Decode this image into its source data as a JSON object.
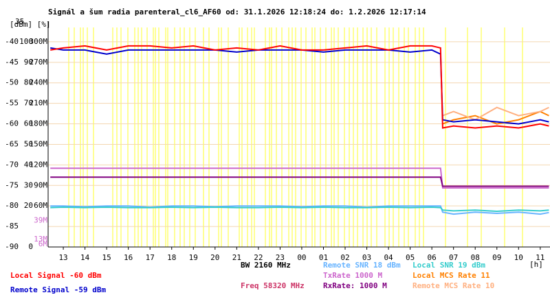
{
  "chart_data": {
    "type": "line",
    "title": "Signál a šum radia parenteral_cl6_AF60 od: 31.1.2026 12:18:24 do: 1.2.2026 12:17:14",
    "y_units_label": "[dBm] [%]",
    "top_label": "35",
    "x_unit_label": "[h]",
    "xlim": [
      -0.7,
      22.45
    ],
    "xticks": [
      {
        "value": 0,
        "label": "13"
      },
      {
        "value": 1,
        "label": "14"
      },
      {
        "value": 2,
        "label": "15"
      },
      {
        "value": 3,
        "label": "16"
      },
      {
        "value": 4,
        "label": "17"
      },
      {
        "value": 5,
        "label": "18"
      },
      {
        "value": 6,
        "label": "19"
      },
      {
        "value": 7,
        "label": "20"
      },
      {
        "value": 8,
        "label": "21"
      },
      {
        "value": 9,
        "label": "22"
      },
      {
        "value": 10,
        "label": "23"
      },
      {
        "value": 11,
        "label": "00"
      },
      {
        "value": 12,
        "label": "01"
      },
      {
        "value": 13,
        "label": "02"
      },
      {
        "value": 14,
        "label": "03"
      },
      {
        "value": 15,
        "label": "04"
      },
      {
        "value": 16,
        "label": "05"
      },
      {
        "value": 17,
        "label": "06"
      },
      {
        "value": 18,
        "label": "07"
      },
      {
        "value": 19,
        "label": "08"
      },
      {
        "value": 20,
        "label": "09"
      },
      {
        "value": 21,
        "label": "10"
      },
      {
        "value": 22,
        "label": "11"
      }
    ],
    "ylim": [
      -90,
      -36.5
    ],
    "yticks": [
      -40,
      -45,
      -50,
      -55,
      -60,
      -65,
      -70,
      -75,
      -80,
      -85,
      -90
    ],
    "percent_labels": [
      "100",
      "90",
      "80",
      "70",
      "60",
      "50",
      "40",
      "30",
      "20",
      null,
      "0"
    ],
    "rate_labels": [
      "300M",
      "270M",
      "240M",
      "210M",
      "180M",
      "150M",
      "120M",
      "90M",
      "60M",
      null,
      null
    ],
    "extra_rate_labels": [
      {
        "value": -83.6,
        "label": "39M"
      },
      {
        "value": -88.2,
        "label": "13M"
      },
      {
        "value": -89.3,
        "label": "6M"
      }
    ],
    "grid": true,
    "x": [
      -0.6,
      0,
      1,
      2,
      3,
      4,
      5,
      6,
      7,
      8,
      9,
      10,
      11,
      12,
      13,
      14,
      15,
      16,
      17,
      17.4,
      17.5,
      18,
      19,
      20,
      21,
      22,
      22.4
    ],
    "series": [
      {
        "name": "Remote SNR 18 dBm",
        "color": "#66b3ff",
        "values": [
          -80,
          -80,
          -80.2,
          -80,
          -80,
          -80.3,
          -80,
          -80,
          -80.2,
          -80,
          -80,
          -80,
          -80.2,
          -80,
          -80,
          -80.3,
          -80,
          -80,
          -80,
          -80,
          -81.5,
          -82,
          -81.5,
          -81.8,
          -81.5,
          -82,
          -81.6
        ]
      },
      {
        "name": "Local SNR 19 dBm",
        "color": "#33cccc",
        "values": [
          -80.4,
          -80.3,
          -80.4,
          -80.3,
          -80.4,
          -80.4,
          -80.3,
          -80.4,
          -80.3,
          -80.4,
          -80.4,
          -80.3,
          -80.4,
          -80.3,
          -80.4,
          -80.4,
          -80.3,
          -80.4,
          -80.3,
          -80.4,
          -81,
          -81.2,
          -81,
          -81.3,
          -81,
          -81.2,
          -81
        ]
      },
      {
        "name": "TxRate 1000 M",
        "color": "#cc66cc",
        "values": [
          -70.8,
          -70.8,
          -70.8,
          -70.8,
          -70.8,
          -70.8,
          -70.8,
          -70.8,
          -70.8,
          -70.8,
          -70.8,
          -70.8,
          -70.8,
          -70.8,
          -70.8,
          -70.8,
          -70.8,
          -70.8,
          -70.8,
          -70.8,
          -75.6,
          -75.6,
          -75.6,
          -75.6,
          -75.6,
          -75.6,
          -75.6
        ]
      },
      {
        "name": "RxRate: 1000 M",
        "color": "#800080",
        "values": [
          -73,
          -73,
          -73,
          -73,
          -73,
          -73,
          -73,
          -73,
          -73,
          -73,
          -73,
          -73,
          -73,
          -73,
          -73,
          -73,
          -73,
          -73,
          -73,
          -73,
          -75.2,
          -75.2,
          -75.2,
          -75.2,
          -75.2,
          -75.2,
          -75.2
        ]
      },
      {
        "name": "Local MCS Rate 11",
        "color": "#ff8000",
        "values": [
          null,
          null,
          null,
          null,
          null,
          null,
          null,
          null,
          null,
          null,
          null,
          null,
          null,
          null,
          null,
          null,
          null,
          null,
          null,
          null,
          -60,
          -59,
          -58,
          -60,
          -59,
          -57,
          -58
        ]
      },
      {
        "name": "Remote MCS Rate 10",
        "color": "#ffb080",
        "values": [
          null,
          null,
          null,
          null,
          null,
          null,
          null,
          null,
          null,
          null,
          null,
          null,
          null,
          null,
          null,
          null,
          null,
          null,
          null,
          null,
          -58,
          -57,
          -59,
          -56,
          -58,
          -57,
          -56
        ]
      },
      {
        "name": "Remote Signal -59 dBm",
        "color": "#0000cc",
        "values": [
          -41.5,
          -42,
          -42,
          -43,
          -42,
          -42,
          -42,
          -42,
          -42,
          -42.5,
          -42,
          -42,
          -42,
          -42.5,
          -42,
          -42,
          -42,
          -42.5,
          -42,
          -43,
          -59,
          -59.5,
          -59,
          -59.5,
          -60,
          -59,
          -59.5
        ]
      },
      {
        "name": "Local Signal -60 dBm",
        "color": "#ff0000",
        "values": [
          -42,
          -41.5,
          -41,
          -42,
          -41,
          -41,
          -41.5,
          -41,
          -42,
          -41.5,
          -42,
          -41,
          -42,
          -42,
          -41.5,
          -41,
          -42,
          -41,
          -41,
          -41.5,
          -61,
          -60.5,
          -61,
          -60.5,
          -61,
          -60,
          -60.5
        ]
      }
    ],
    "bandwidth_label": "BW 2160 MHz",
    "frequency_label": "Freq 58320 MHz"
  }
}
